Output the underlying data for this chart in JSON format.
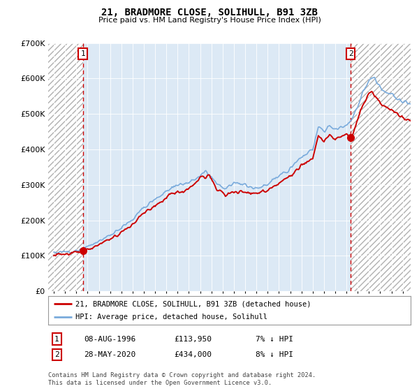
{
  "title": "21, BRADMORE CLOSE, SOLIHULL, B91 3ZB",
  "subtitle": "Price paid vs. HM Land Registry's House Price Index (HPI)",
  "legend_line1": "21, BRADMORE CLOSE, SOLIHULL, B91 3ZB (detached house)",
  "legend_line2": "HPI: Average price, detached house, Solihull",
  "annotation1_date": "08-AUG-1996",
  "annotation1_price": "£113,950",
  "annotation1_hpi": "7% ↓ HPI",
  "annotation2_date": "28-MAY-2020",
  "annotation2_price": "£434,000",
  "annotation2_hpi": "8% ↓ HPI",
  "footnote": "Contains HM Land Registry data © Crown copyright and database right 2024.\nThis data is licensed under the Open Government Licence v3.0.",
  "sale1_year": 1996.58,
  "sale1_price": 113950,
  "sale2_year": 2020.38,
  "sale2_price": 434000,
  "hpi_color": "#7aabdc",
  "price_color": "#cc0000",
  "background_color": "#dce9f5",
  "grid_color": "#ffffff",
  "ylim_min": 0,
  "ylim_max": 700000,
  "xlim_min": 1993.5,
  "xlim_max": 2025.7
}
